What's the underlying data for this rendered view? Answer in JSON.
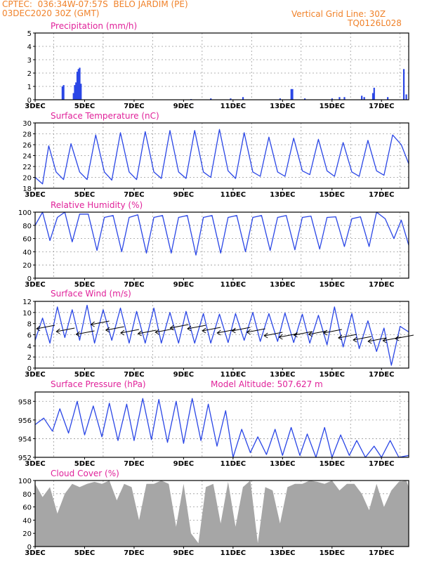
{
  "header": {
    "line1_left": "CPTEC:  036:34W-07:57S  BELO JARDIM (PE)",
    "line2_left": "03DEC2020 30Z (GMT)",
    "line1_right": "Vertical Grid Line: 30Z",
    "line2_right": "TQ0126L028"
  },
  "colors": {
    "header": "#f0822a",
    "title": "#e0229a",
    "series": "#2a46e6",
    "grid": "#9a9a9a",
    "cloud": "#a6a6a6"
  },
  "x_ticks": [
    "3DEC",
    "5DEC",
    "7DEC",
    "9DEC",
    "11DEC",
    "13DEC",
    "15DEC",
    "17DEC"
  ],
  "x_range_days": [
    3,
    18.1
  ],
  "chart_data": [
    {
      "type": "bar",
      "title": "Precipitation (mm/h)",
      "ylim": [
        0,
        5
      ],
      "yticks": [
        0,
        1,
        2,
        3,
        4,
        5
      ],
      "grid": true,
      "x_days": [
        4.1,
        4.15,
        4.55,
        4.6,
        4.65,
        4.7,
        4.75,
        4.8,
        4.85,
        9.3,
        10.1,
        10.9,
        11.4,
        12.9,
        13.35,
        13.4,
        13.9,
        15.0,
        15.3,
        15.5,
        16.2,
        16.3,
        16.65,
        16.7,
        17.25,
        17.9,
        18.0
      ],
      "values": [
        1.0,
        1.1,
        0.5,
        1.1,
        1.3,
        2.1,
        2.3,
        2.4,
        1.2,
        0.05,
        0.1,
        0.1,
        0.2,
        0.1,
        0.8,
        0.8,
        0.1,
        0.1,
        0.2,
        0.2,
        0.3,
        0.2,
        0.5,
        0.9,
        0.2,
        2.3,
        0.4
      ]
    },
    {
      "type": "line",
      "title": "Surface Temperature (nC)",
      "ylim": [
        18,
        30
      ],
      "yticks": [
        18,
        20,
        22,
        24,
        26,
        28,
        30
      ],
      "grid": true,
      "x_days": [
        3.0,
        3.3,
        3.55,
        3.85,
        4.15,
        4.45,
        4.8,
        5.1,
        5.45,
        5.8,
        6.1,
        6.45,
        6.8,
        7.1,
        7.45,
        7.8,
        8.1,
        8.45,
        8.8,
        9.1,
        9.45,
        9.8,
        10.1,
        10.45,
        10.8,
        11.1,
        11.45,
        11.8,
        12.1,
        12.45,
        12.8,
        13.1,
        13.45,
        13.8,
        14.1,
        14.45,
        14.8,
        15.1,
        15.45,
        15.8,
        16.1,
        16.45,
        16.8,
        17.1,
        17.45,
        17.8,
        18.1
      ],
      "values": [
        20,
        18.8,
        25.8,
        21,
        19.6,
        26.2,
        21,
        19.6,
        27.8,
        21,
        19.5,
        28.2,
        21,
        19.6,
        28.4,
        21,
        19.8,
        28.6,
        21,
        19.8,
        28.6,
        21,
        20,
        28.8,
        21.2,
        19.8,
        28.2,
        21,
        20.2,
        27.4,
        21,
        20.2,
        27.2,
        21.2,
        20.5,
        27,
        21.2,
        20.2,
        26.4,
        21,
        20.2,
        26.8,
        21.2,
        20.4,
        27.8,
        26,
        22.5
      ]
    },
    {
      "type": "line",
      "title": "Relative Humidity (%)",
      "ylim": [
        0,
        100
      ],
      "yticks": [
        0,
        20,
        40,
        60,
        80,
        100
      ],
      "grid": true,
      "x_days": [
        3.0,
        3.3,
        3.6,
        3.9,
        4.2,
        4.5,
        4.8,
        5.15,
        5.5,
        5.8,
        6.15,
        6.5,
        6.8,
        7.15,
        7.5,
        7.8,
        8.15,
        8.5,
        8.8,
        9.15,
        9.5,
        9.8,
        10.15,
        10.5,
        10.8,
        11.15,
        11.5,
        11.8,
        12.15,
        12.5,
        12.8,
        13.15,
        13.5,
        13.8,
        14.15,
        14.5,
        14.8,
        15.15,
        15.5,
        15.8,
        16.15,
        16.5,
        16.8,
        17.15,
        17.5,
        17.8,
        18.1
      ],
      "values": [
        80,
        100,
        57,
        92,
        100,
        55,
        97,
        97,
        42,
        92,
        95,
        40,
        92,
        96,
        38,
        92,
        95,
        38,
        92,
        95,
        35,
        92,
        95,
        38,
        92,
        95,
        40,
        92,
        95,
        42,
        92,
        95,
        43,
        92,
        94,
        44,
        92,
        93,
        48,
        90,
        93,
        48,
        100,
        90,
        60,
        88,
        50
      ]
    },
    {
      "type": "line",
      "title": "Surface Wind (m/s)",
      "ylim": [
        0,
        12
      ],
      "yticks": [
        0,
        2,
        4,
        6,
        8,
        10,
        12
      ],
      "grid": true,
      "x_days": [
        3.0,
        3.3,
        3.6,
        3.9,
        4.2,
        4.5,
        4.8,
        5.1,
        5.4,
        5.75,
        6.1,
        6.45,
        6.8,
        7.1,
        7.45,
        7.8,
        8.1,
        8.45,
        8.8,
        9.1,
        9.45,
        9.8,
        10.1,
        10.45,
        10.8,
        11.1,
        11.45,
        11.8,
        12.1,
        12.45,
        12.8,
        13.1,
        13.45,
        13.8,
        14.1,
        14.45,
        14.8,
        15.1,
        15.45,
        15.8,
        16.1,
        16.45,
        16.8,
        17.1,
        17.4,
        17.75,
        18.1
      ],
      "values": [
        5,
        9,
        4.5,
        11,
        5.5,
        10.5,
        5,
        11.3,
        4.5,
        10.5,
        5,
        10.8,
        4.5,
        10.2,
        4.5,
        10.8,
        4.5,
        10,
        4.5,
        10.2,
        4.5,
        9.8,
        4.5,
        9.7,
        4.6,
        9.8,
        5,
        10,
        4.8,
        9.8,
        4.8,
        9.9,
        4.6,
        9.7,
        4.5,
        9.5,
        4.2,
        11,
        3.8,
        9.8,
        3.5,
        8.5,
        3,
        7.2,
        0.5,
        7.5,
        6.5
      ]
    },
    {
      "type": "line",
      "title": "Surface Pressure (hPa)",
      "ylim": [
        952,
        959
      ],
      "yticks": [
        952,
        954,
        956,
        958
      ],
      "grid": true,
      "x_days": [
        3.0,
        3.35,
        3.7,
        4.0,
        4.35,
        4.7,
        5.0,
        5.35,
        5.7,
        6.0,
        6.35,
        6.7,
        7.0,
        7.35,
        7.7,
        8.0,
        8.35,
        8.7,
        9.0,
        9.35,
        9.7,
        10.0,
        10.35,
        10.7,
        11.0,
        11.35,
        11.7,
        12.0,
        12.35,
        12.7,
        13.0,
        13.35,
        13.7,
        14.0,
        14.35,
        14.7,
        15.0,
        15.35,
        15.7,
        16.0,
        16.35,
        16.7,
        17.0,
        17.35,
        17.7,
        18.1
      ],
      "values": [
        955.5,
        956.2,
        954.8,
        957.2,
        954.6,
        958.0,
        954.4,
        957.5,
        954.2,
        957.8,
        953.8,
        957.7,
        953.8,
        958.3,
        953.9,
        958.2,
        953.6,
        958.0,
        953.5,
        958.3,
        953.8,
        957.7,
        953.2,
        957.0,
        952.0,
        955.0,
        952.5,
        954.2,
        952.3,
        955.0,
        952.2,
        955.2,
        952.2,
        954.5,
        952.0,
        955.2,
        952.0,
        954.4,
        952.2,
        953.8,
        952.0,
        953.2,
        952.0,
        953.8,
        952.0,
        952.2
      ]
    },
    {
      "type": "area",
      "title": "Cloud Cover (%)",
      "ylim": [
        0,
        100
      ],
      "yticks": [
        0,
        20,
        40,
        60,
        80,
        100
      ],
      "grid": true,
      "x_days": [
        3.0,
        3.3,
        3.6,
        3.9,
        4.2,
        4.5,
        4.8,
        5.1,
        5.4,
        5.7,
        6.0,
        6.3,
        6.6,
        6.9,
        7.2,
        7.5,
        7.8,
        8.1,
        8.4,
        8.7,
        9.0,
        9.3,
        9.6,
        9.9,
        10.2,
        10.5,
        10.8,
        11.1,
        11.4,
        11.7,
        12.0,
        12.3,
        12.6,
        12.9,
        13.2,
        13.5,
        13.8,
        14.1,
        14.4,
        14.7,
        15.0,
        15.3,
        15.6,
        15.9,
        16.2,
        16.5,
        16.8,
        17.1,
        17.4,
        17.7,
        18.0,
        18.1
      ],
      "values": [
        95,
        75,
        90,
        50,
        80,
        95,
        90,
        95,
        98,
        95,
        100,
        70,
        95,
        90,
        40,
        95,
        95,
        100,
        95,
        30,
        95,
        20,
        5,
        90,
        95,
        35,
        98,
        30,
        90,
        100,
        5,
        90,
        85,
        35,
        90,
        95,
        95,
        100,
        98,
        95,
        100,
        85,
        95,
        95,
        80,
        55,
        95,
        60,
        85,
        98,
        100,
        90
      ]
    }
  ],
  "panels": {
    "prec": {
      "title": "Precipitation (mm/h)"
    },
    "temp": {
      "title": "Surface Temperature (nC)"
    },
    "rh": {
      "title": "Relative Humidity (%)"
    },
    "wind": {
      "title": "Surface Wind (m/s)"
    },
    "press": {
      "title": "Surface Pressure (hPa)",
      "extra": "Model Altitude: 507.627 m"
    },
    "cloud": {
      "title": "Cloud Cover (%)"
    }
  }
}
